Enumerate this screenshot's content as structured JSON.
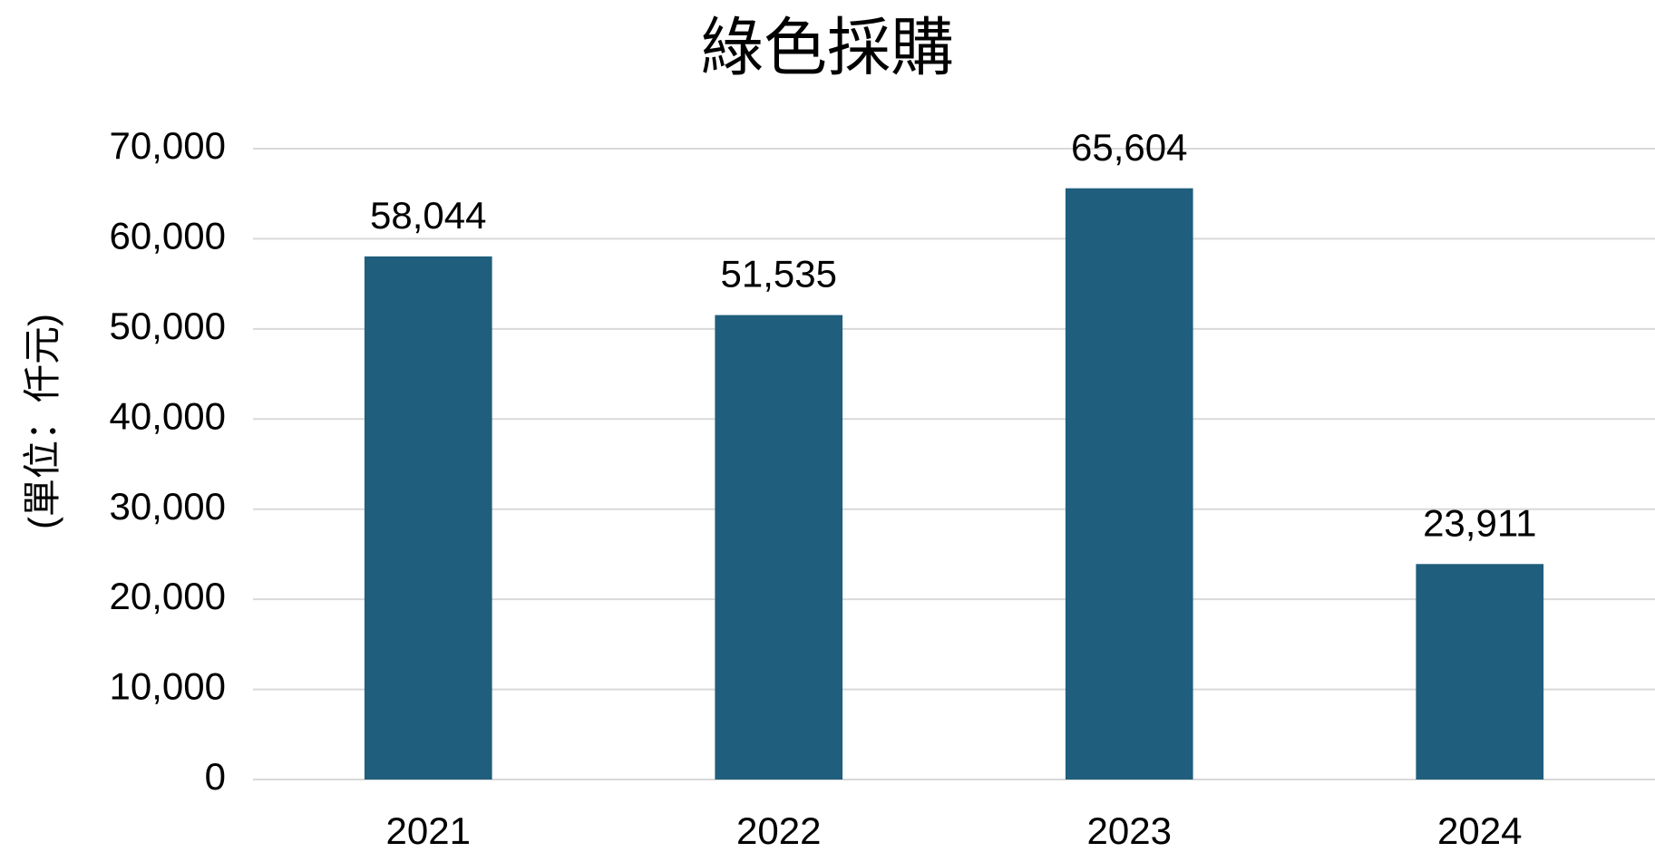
{
  "chart_data": {
    "type": "bar",
    "title": "綠色採購",
    "y_label": "(單位：仟元)",
    "categories": [
      "2021",
      "2022",
      "2023",
      "2024"
    ],
    "values": [
      58044,
      51535,
      65604,
      23911
    ],
    "value_labels": [
      "58,044",
      "51,535",
      "65,604",
      "23,911"
    ],
    "color": "#1f5e7c",
    "ylim": [
      0,
      70000
    ],
    "yticks": [
      0,
      {
        "value": 10000,
        "label": "10,000"
      },
      {
        "value": 20000,
        "label": "20,000"
      },
      {
        "value": 30000,
        "label": "30,000"
      },
      {
        "value": 40000,
        "label": "40,000"
      },
      {
        "value": 50000,
        "label": "50,000"
      },
      {
        "value": 60000,
        "label": "60,000"
      },
      {
        "value": 70000,
        "label": "70,000"
      }
    ],
    "grid": true
  }
}
